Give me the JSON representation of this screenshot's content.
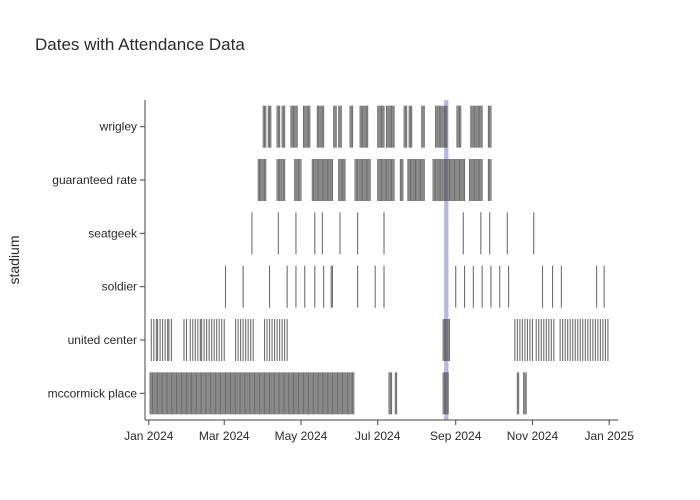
{
  "chart_data": {
    "type": "strip",
    "title": "Dates with Attendance Data",
    "xlabel": "",
    "ylabel": "stadium",
    "x_tick_labels": [
      "Jan 2024",
      "Mar 2024",
      "May 2024",
      "Jul 2024",
      "Sep 2024",
      "Nov 2024",
      "Jan 2025"
    ],
    "x_tick_dates": [
      "2024-01-01",
      "2024-03-01",
      "2024-05-01",
      "2024-07-01",
      "2024-09-01",
      "2024-11-01",
      "2025-01-01"
    ],
    "xlim": [
      "2023-12-29",
      "2025-01-08"
    ],
    "highlight": {
      "date_range": [
        "2024-08-24",
        "2024-08-25"
      ],
      "color": "#b3b3e6"
    },
    "mark_color": "#555555",
    "grid": false,
    "series": [
      {
        "name": "wrigley",
        "dates": [
          "2024-04-01",
          "2024-04-02",
          "2024-04-03",
          "2024-04-05",
          "2024-04-06",
          "2024-04-07",
          "2024-04-12",
          "2024-04-13",
          "2024-04-14",
          "2024-04-16",
          "2024-04-17",
          "2024-04-18",
          "2024-04-23",
          "2024-04-24",
          "2024-04-25",
          "2024-04-26",
          "2024-04-27",
          "2024-04-28",
          "2024-05-03",
          "2024-05-04",
          "2024-05-05",
          "2024-05-06",
          "2024-05-07",
          "2024-05-08",
          "2024-05-14",
          "2024-05-15",
          "2024-05-16",
          "2024-05-17",
          "2024-05-18",
          "2024-05-19",
          "2024-05-27",
          "2024-05-28",
          "2024-05-29",
          "2024-05-31",
          "2024-06-01",
          "2024-06-02",
          "2024-06-09",
          "2024-06-10",
          "2024-06-11",
          "2024-06-17",
          "2024-06-18",
          "2024-06-19",
          "2024-06-20",
          "2024-06-21",
          "2024-06-22",
          "2024-06-23",
          "2024-07-01",
          "2024-07-02",
          "2024-07-03",
          "2024-07-04",
          "2024-07-05",
          "2024-07-06",
          "2024-07-08",
          "2024-07-09",
          "2024-07-10",
          "2024-07-11",
          "2024-07-12",
          "2024-07-13",
          "2024-07-14",
          "2024-07-22",
          "2024-07-23",
          "2024-07-24",
          "2024-07-26",
          "2024-07-27",
          "2024-07-28",
          "2024-08-05",
          "2024-08-06",
          "2024-08-07",
          "2024-08-16",
          "2024-08-17",
          "2024-08-18",
          "2024-08-19",
          "2024-08-20",
          "2024-08-21",
          "2024-08-22",
          "2024-08-23",
          "2024-08-24",
          "2024-08-25",
          "2024-09-02",
          "2024-09-03",
          "2024-09-04",
          "2024-09-05",
          "2024-09-13",
          "2024-09-14",
          "2024-09-15",
          "2024-09-16",
          "2024-09-17",
          "2024-09-18",
          "2024-09-19",
          "2024-09-20",
          "2024-09-21",
          "2024-09-22",
          "2024-09-27",
          "2024-09-28",
          "2024-09-29"
        ]
      },
      {
        "name": "guaranteed rate",
        "dates": [
          "2024-03-28",
          "2024-03-29",
          "2024-03-30",
          "2024-03-31",
          "2024-04-01",
          "2024-04-02",
          "2024-04-03",
          "2024-04-12",
          "2024-04-13",
          "2024-04-14",
          "2024-04-15",
          "2024-04-16",
          "2024-04-17",
          "2024-04-18",
          "2024-04-26",
          "2024-04-27",
          "2024-04-28",
          "2024-04-29",
          "2024-04-30",
          "2024-05-01",
          "2024-05-10",
          "2024-05-11",
          "2024-05-12",
          "2024-05-13",
          "2024-05-14",
          "2024-05-15",
          "2024-05-16",
          "2024-05-17",
          "2024-05-18",
          "2024-05-19",
          "2024-05-20",
          "2024-05-21",
          "2024-05-22",
          "2024-05-23",
          "2024-05-24",
          "2024-05-25",
          "2024-05-26",
          "2024-05-31",
          "2024-06-01",
          "2024-06-02",
          "2024-06-03",
          "2024-06-04",
          "2024-06-05",
          "2024-06-13",
          "2024-06-14",
          "2024-06-15",
          "2024-06-16",
          "2024-06-17",
          "2024-06-18",
          "2024-06-19",
          "2024-06-20",
          "2024-06-21",
          "2024-06-22",
          "2024-06-23",
          "2024-06-24",
          "2024-06-25",
          "2024-07-01",
          "2024-07-02",
          "2024-07-03",
          "2024-07-04",
          "2024-07-05",
          "2024-07-06",
          "2024-07-07",
          "2024-07-08",
          "2024-07-09",
          "2024-07-10",
          "2024-07-11",
          "2024-07-12",
          "2024-07-13",
          "2024-07-14",
          "2024-07-19",
          "2024-07-20",
          "2024-07-21",
          "2024-07-25",
          "2024-07-26",
          "2024-07-27",
          "2024-07-28",
          "2024-07-29",
          "2024-07-30",
          "2024-07-31",
          "2024-08-01",
          "2024-08-02",
          "2024-08-03",
          "2024-08-04",
          "2024-08-05",
          "2024-08-06",
          "2024-08-07",
          "2024-08-14",
          "2024-08-15",
          "2024-08-16",
          "2024-08-17",
          "2024-08-18",
          "2024-08-19",
          "2024-08-20",
          "2024-08-21",
          "2024-08-22",
          "2024-08-23",
          "2024-08-24",
          "2024-08-25",
          "2024-08-26",
          "2024-08-27",
          "2024-08-28",
          "2024-08-29",
          "2024-08-30",
          "2024-08-31",
          "2024-09-01",
          "2024-09-02",
          "2024-09-03",
          "2024-09-04",
          "2024-09-05",
          "2024-09-06",
          "2024-09-07",
          "2024-09-08",
          "2024-09-12",
          "2024-09-13",
          "2024-09-14",
          "2024-09-15",
          "2024-09-16",
          "2024-09-17",
          "2024-09-18",
          "2024-09-19",
          "2024-09-20",
          "2024-09-21",
          "2024-09-22",
          "2024-09-27",
          "2024-09-28",
          "2024-09-29"
        ]
      },
      {
        "name": "seatgeek",
        "dates": [
          "2024-03-23",
          "2024-04-13",
          "2024-04-27",
          "2024-05-12",
          "2024-05-18",
          "2024-06-01",
          "2024-06-15",
          "2024-07-06",
          "2024-09-07",
          "2024-09-21",
          "2024-09-28",
          "2024-10-12",
          "2024-11-02"
        ]
      },
      {
        "name": "soldier",
        "dates": [
          "2024-03-02",
          "2024-03-16",
          "2024-04-06",
          "2024-04-20",
          "2024-04-27",
          "2024-05-04",
          "2024-05-12",
          "2024-05-19",
          "2024-05-25",
          "2024-05-26",
          "2024-06-15",
          "2024-06-29",
          "2024-07-06",
          "2024-09-01",
          "2024-09-08",
          "2024-09-15",
          "2024-09-22",
          "2024-09-29",
          "2024-10-06",
          "2024-10-13",
          "2024-11-09",
          "2024-11-17",
          "2024-11-24",
          "2024-12-22",
          "2024-12-28"
        ]
      },
      {
        "name": "united center",
        "dates": [
          "2024-01-03",
          "2024-01-05",
          "2024-01-07",
          "2024-01-08",
          "2024-01-10",
          "2024-01-12",
          "2024-01-14",
          "2024-01-16",
          "2024-01-17",
          "2024-01-19",
          "2024-01-29",
          "2024-01-31",
          "2024-02-03",
          "2024-02-05",
          "2024-02-07",
          "2024-02-09",
          "2024-02-11",
          "2024-02-12",
          "2024-02-14",
          "2024-02-16",
          "2024-02-18",
          "2024-02-20",
          "2024-02-22",
          "2024-02-24",
          "2024-02-26",
          "2024-02-28",
          "2024-03-01",
          "2024-03-10",
          "2024-03-12",
          "2024-03-14",
          "2024-03-16",
          "2024-03-18",
          "2024-03-20",
          "2024-03-22",
          "2024-03-24",
          "2024-04-02",
          "2024-04-04",
          "2024-04-06",
          "2024-04-08",
          "2024-04-10",
          "2024-04-12",
          "2024-04-14",
          "2024-04-16",
          "2024-04-18",
          "2024-04-20",
          "2024-08-22",
          "2024-08-23",
          "2024-08-24",
          "2024-08-25",
          "2024-08-26",
          "2024-08-27",
          "2024-10-18",
          "2024-10-20",
          "2024-10-22",
          "2024-10-24",
          "2024-10-26",
          "2024-10-28",
          "2024-10-30",
          "2024-11-01",
          "2024-11-04",
          "2024-11-06",
          "2024-11-08",
          "2024-11-10",
          "2024-11-12",
          "2024-11-14",
          "2024-11-16",
          "2024-11-18",
          "2024-11-23",
          "2024-11-25",
          "2024-11-27",
          "2024-11-29",
          "2024-12-01",
          "2024-12-03",
          "2024-12-05",
          "2024-12-07",
          "2024-12-09",
          "2024-12-11",
          "2024-12-13",
          "2024-12-15",
          "2024-12-17",
          "2024-12-19",
          "2024-12-21",
          "2024-12-23",
          "2024-12-25",
          "2024-12-27",
          "2024-12-29",
          "2024-12-31"
        ]
      },
      {
        "name": "mccormick place",
        "dates": [
          "2024-01-02",
          "2024-01-03",
          "2024-01-04",
          "2024-01-05",
          "2024-01-06",
          "2024-01-07",
          "2024-01-08",
          "2024-01-09",
          "2024-01-10",
          "2024-01-11",
          "2024-01-12",
          "2024-01-13",
          "2024-01-14",
          "2024-01-15",
          "2024-01-16",
          "2024-01-17",
          "2024-01-18",
          "2024-01-19",
          "2024-01-20",
          "2024-01-21",
          "2024-01-22",
          "2024-01-23",
          "2024-01-24",
          "2024-01-25",
          "2024-01-26",
          "2024-01-27",
          "2024-01-28",
          "2024-01-29",
          "2024-01-30",
          "2024-01-31",
          "2024-02-01",
          "2024-02-02",
          "2024-02-03",
          "2024-02-04",
          "2024-02-05",
          "2024-02-06",
          "2024-02-07",
          "2024-02-08",
          "2024-02-09",
          "2024-02-10",
          "2024-02-11",
          "2024-02-12",
          "2024-02-13",
          "2024-02-14",
          "2024-02-15",
          "2024-02-16",
          "2024-02-17",
          "2024-02-18",
          "2024-02-19",
          "2024-02-20",
          "2024-02-21",
          "2024-02-22",
          "2024-02-23",
          "2024-02-24",
          "2024-02-25",
          "2024-02-26",
          "2024-02-27",
          "2024-02-28",
          "2024-02-29",
          "2024-03-01",
          "2024-03-02",
          "2024-03-03",
          "2024-03-04",
          "2024-03-05",
          "2024-03-06",
          "2024-03-07",
          "2024-03-08",
          "2024-03-09",
          "2024-03-10",
          "2024-03-11",
          "2024-03-12",
          "2024-03-13",
          "2024-03-14",
          "2024-03-15",
          "2024-03-16",
          "2024-03-17",
          "2024-03-18",
          "2024-03-19",
          "2024-03-20",
          "2024-03-21",
          "2024-03-22",
          "2024-03-23",
          "2024-03-24",
          "2024-03-25",
          "2024-03-26",
          "2024-03-27",
          "2024-03-28",
          "2024-03-29",
          "2024-03-30",
          "2024-03-31",
          "2024-04-01",
          "2024-04-02",
          "2024-04-03",
          "2024-04-04",
          "2024-04-05",
          "2024-04-06",
          "2024-04-07",
          "2024-04-08",
          "2024-04-09",
          "2024-04-10",
          "2024-04-11",
          "2024-04-12",
          "2024-04-13",
          "2024-04-14",
          "2024-04-15",
          "2024-04-16",
          "2024-04-17",
          "2024-04-18",
          "2024-04-19",
          "2024-04-20",
          "2024-04-21",
          "2024-04-22",
          "2024-04-23",
          "2024-04-24",
          "2024-04-25",
          "2024-04-26",
          "2024-04-27",
          "2024-04-28",
          "2024-04-29",
          "2024-04-30",
          "2024-05-01",
          "2024-05-02",
          "2024-05-03",
          "2024-05-04",
          "2024-05-05",
          "2024-05-06",
          "2024-05-07",
          "2024-05-08",
          "2024-05-09",
          "2024-05-10",
          "2024-05-11",
          "2024-05-12",
          "2024-05-13",
          "2024-05-14",
          "2024-05-15",
          "2024-05-16",
          "2024-05-17",
          "2024-05-18",
          "2024-05-19",
          "2024-05-20",
          "2024-05-21",
          "2024-05-22",
          "2024-05-23",
          "2024-05-24",
          "2024-05-25",
          "2024-05-26",
          "2024-05-27",
          "2024-05-28",
          "2024-05-29",
          "2024-05-30",
          "2024-05-31",
          "2024-06-01",
          "2024-06-02",
          "2024-06-03",
          "2024-06-04",
          "2024-06-05",
          "2024-06-06",
          "2024-06-07",
          "2024-06-08",
          "2024-06-09",
          "2024-06-10",
          "2024-06-11",
          "2024-06-12",
          "2024-07-10",
          "2024-07-11",
          "2024-07-12",
          "2024-07-15",
          "2024-07-16",
          "2024-08-22",
          "2024-08-23",
          "2024-08-24",
          "2024-08-25",
          "2024-08-26",
          "2024-10-20",
          "2024-10-21",
          "2024-10-25",
          "2024-10-26",
          "2024-10-27"
        ]
      }
    ]
  }
}
